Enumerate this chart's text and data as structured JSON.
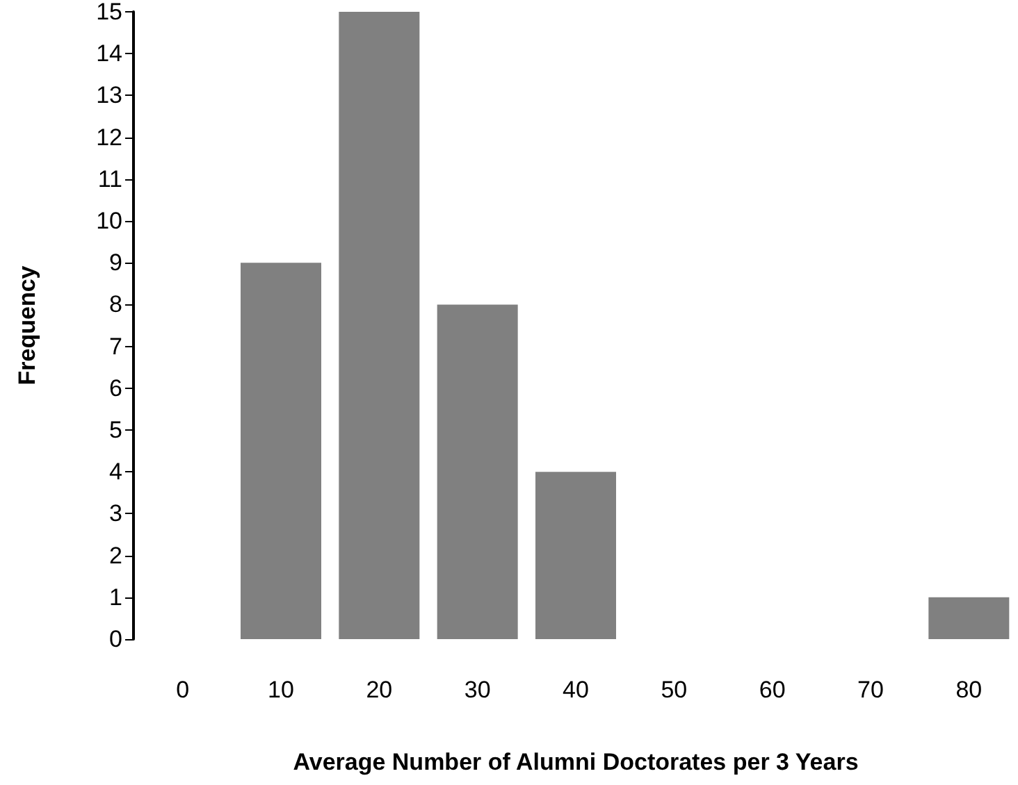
{
  "chart_data": {
    "type": "bar",
    "xlabel": "Average Number of Alumni Doctorates per 3 Years",
    "ylabel": "Frequency",
    "categories": [
      "0",
      "10",
      "20",
      "30",
      "40",
      "50",
      "60",
      "70",
      "80"
    ],
    "values": [
      0,
      9,
      15,
      8,
      4,
      0,
      0,
      0,
      1
    ],
    "color": "#808080",
    "ylim": [
      0,
      15
    ],
    "yticks": [
      0,
      1,
      2,
      3,
      4,
      5,
      6,
      7,
      8,
      9,
      10,
      11,
      12,
      13,
      14,
      15
    ],
    "grid": false
  }
}
